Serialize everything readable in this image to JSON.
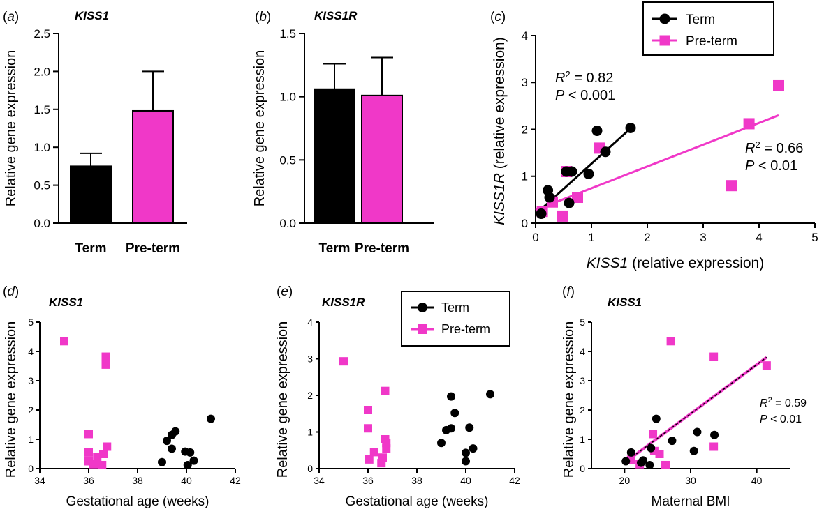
{
  "figure": {
    "colors": {
      "term": "#000000",
      "preterm": "#f038c8",
      "axis": "#000000"
    },
    "legend": {
      "term_label": "Term",
      "preterm_label": "Pre-term"
    }
  },
  "chart_data": [
    {
      "id": "a",
      "type": "bar",
      "panel_label": "a",
      "title": "KISS1",
      "ylabel": "Relative gene expression",
      "xlabel": "",
      "ylim": [
        0,
        2.5
      ],
      "yticks": [
        0,
        0.5,
        1.0,
        1.5,
        2.0,
        2.5
      ],
      "ytick_labels": [
        "0.0",
        "0.5",
        "1.0",
        "1.5",
        "2.0",
        "2.5"
      ],
      "categories": [
        "Term",
        "Pre-term"
      ],
      "values": [
        0.75,
        1.48
      ],
      "errors": [
        0.17,
        0.52
      ]
    },
    {
      "id": "b",
      "type": "bar",
      "panel_label": "b",
      "title": "KISS1R",
      "ylabel": "Relative gene expression",
      "xlabel": "",
      "ylim": [
        0,
        1.5
      ],
      "yticks": [
        0,
        0.5,
        1.0,
        1.5
      ],
      "ytick_labels": [
        "0.0",
        "0.5",
        "1.0",
        "1.5"
      ],
      "categories": [
        "Term",
        "Pre-term"
      ],
      "values": [
        1.06,
        1.01
      ],
      "errors": [
        0.2,
        0.3
      ]
    },
    {
      "id": "c",
      "type": "scatter",
      "panel_label": "c",
      "title": "",
      "xlabel_italic": "KISS1",
      "xlabel_rest": " (relative expression)",
      "ylabel_italic": "KISS1R",
      "ylabel_rest": " (relative expression)",
      "xlim": [
        0,
        5
      ],
      "ylim": [
        0,
        4
      ],
      "xticks": [
        0,
        1,
        2,
        3,
        4,
        5
      ],
      "yticks": [
        0,
        1,
        2,
        3,
        4
      ],
      "xtick_labels": [
        "0",
        "1",
        "2",
        "3",
        "4",
        "5"
      ],
      "ytick_labels": [
        "0",
        "1",
        "2",
        "3",
        "4"
      ],
      "legend": [
        "Term",
        "Pre-term"
      ],
      "series": [
        {
          "name": "Term",
          "marker": "circle",
          "points": [
            [
              0.1,
              0.2
            ],
            [
              0.22,
              0.7
            ],
            [
              0.25,
              0.55
            ],
            [
              0.55,
              1.1
            ],
            [
              0.65,
              1.1
            ],
            [
              0.95,
              1.05
            ],
            [
              1.1,
              1.97
            ],
            [
              0.6,
              0.43
            ],
            [
              1.25,
              1.52
            ],
            [
              1.7,
              2.03
            ]
          ],
          "fit": [
            [
              0.1,
              0.3
            ],
            [
              1.7,
              2.02
            ]
          ],
          "stats": {
            "r2": "R",
            "r2_value": " = 0.82",
            "p": "P",
            "p_value": " < 0.001"
          }
        },
        {
          "name": "Pre-term",
          "marker": "square",
          "points": [
            [
              0.12,
              0.25
            ],
            [
              0.3,
              0.45
            ],
            [
              0.48,
              0.15
            ],
            [
              0.55,
              1.1
            ],
            [
              0.75,
              0.55
            ],
            [
              1.15,
              1.6
            ],
            [
              3.5,
              0.8
            ],
            [
              3.82,
              2.12
            ],
            [
              4.35,
              2.93
            ]
          ],
          "fit": [
            [
              0,
              0.28
            ],
            [
              4.35,
              2.3
            ]
          ],
          "stats": {
            "r2": "R",
            "r2_value": " = 0.66",
            "p": "P",
            "p_value": " < 0.01"
          }
        }
      ]
    },
    {
      "id": "d",
      "type": "scatter",
      "panel_label": "d",
      "title": "KISS1",
      "xlabel": "Gestational age (weeks)",
      "ylabel": "Relative gene expression",
      "xlim": [
        34,
        42
      ],
      "ylim": [
        0,
        5
      ],
      "xticks": [
        34,
        36,
        38,
        40,
        42
      ],
      "yticks": [
        0,
        1,
        2,
        3,
        4,
        5
      ],
      "xtick_labels": [
        "34",
        "36",
        "38",
        "40",
        "42"
      ],
      "ytick_labels": [
        "0",
        "1",
        "2",
        "3",
        "4",
        "5"
      ],
      "series": [
        {
          "name": "Term",
          "marker": "circle",
          "points": [
            [
              39.0,
              0.22
            ],
            [
              39.2,
              0.95
            ],
            [
              39.4,
              0.68
            ],
            [
              39.4,
              1.15
            ],
            [
              39.55,
              1.27
            ],
            [
              39.95,
              0.58
            ],
            [
              40.05,
              0.12
            ],
            [
              40.15,
              0.55
            ],
            [
              40.3,
              0.27
            ],
            [
              41.0,
              1.7
            ]
          ]
        },
        {
          "name": "Pre-term",
          "marker": "square",
          "points": [
            [
              35.0,
              4.35
            ],
            [
              36.0,
              1.18
            ],
            [
              36.0,
              0.55
            ],
            [
              36.0,
              0.25
            ],
            [
              36.2,
              0.15
            ],
            [
              36.35,
              0.4
            ],
            [
              36.55,
              0.12
            ],
            [
              36.6,
              0.5
            ],
            [
              36.7,
              3.82
            ],
            [
              36.7,
              3.55
            ],
            [
              36.75,
              0.75
            ]
          ]
        }
      ]
    },
    {
      "id": "e",
      "type": "scatter",
      "panel_label": "e",
      "title": "KISS1R",
      "xlabel": "Gestational age (weeks)",
      "ylabel": "Relative gene expression",
      "xlim": [
        34,
        42
      ],
      "ylim": [
        0,
        4
      ],
      "xticks": [
        34,
        36,
        38,
        40,
        42
      ],
      "yticks": [
        0,
        1,
        2,
        3,
        4
      ],
      "xtick_labels": [
        "34",
        "36",
        "38",
        "40",
        "42"
      ],
      "ytick_labels": [
        "0",
        "1",
        "2",
        "3",
        "4"
      ],
      "legend": [
        "Term",
        "Pre-term"
      ],
      "series": [
        {
          "name": "Term",
          "marker": "circle",
          "points": [
            [
              39.0,
              0.7
            ],
            [
              39.2,
              1.05
            ],
            [
              39.4,
              1.1
            ],
            [
              39.4,
              1.97
            ],
            [
              39.55,
              1.52
            ],
            [
              40.0,
              0.43
            ],
            [
              40.0,
              0.2
            ],
            [
              40.15,
              1.12
            ],
            [
              40.3,
              0.55
            ],
            [
              41.0,
              2.03
            ]
          ]
        },
        {
          "name": "Pre-term",
          "marker": "square",
          "points": [
            [
              35.0,
              2.93
            ],
            [
              36.0,
              1.6
            ],
            [
              36.0,
              1.1
            ],
            [
              36.05,
              0.25
            ],
            [
              36.25,
              0.45
            ],
            [
              36.55,
              0.15
            ],
            [
              36.6,
              0.3
            ],
            [
              36.7,
              2.12
            ],
            [
              36.7,
              0.8
            ],
            [
              36.75,
              0.7
            ],
            [
              36.75,
              0.55
            ]
          ]
        }
      ]
    },
    {
      "id": "f",
      "type": "scatter",
      "panel_label": "f",
      "title": "KISS1",
      "xlabel": "Maternal BMI",
      "ylabel": "Relative gene expression",
      "xlim": [
        15,
        45
      ],
      "ylim": [
        0,
        5
      ],
      "xticks": [
        20,
        30,
        40
      ],
      "yticks": [
        0,
        1,
        2,
        3,
        4,
        5
      ],
      "xtick_labels": [
        "20",
        "30",
        "40"
      ],
      "ytick_labels": [
        "0",
        "1",
        "2",
        "3",
        "4",
        "5"
      ],
      "series": [
        {
          "name": "Term",
          "marker": "circle",
          "points": [
            [
              20.2,
              0.25
            ],
            [
              21.0,
              0.55
            ],
            [
              22.5,
              0.2
            ],
            [
              22.8,
              0.28
            ],
            [
              23.8,
              0.12
            ],
            [
              24.0,
              0.7
            ],
            [
              24.8,
              1.7
            ],
            [
              27.2,
              0.95
            ],
            [
              30.5,
              0.6
            ],
            [
              31.0,
              1.25
            ],
            [
              33.6,
              1.15
            ]
          ]
        },
        {
          "name": "Pre-term",
          "marker": "square",
          "points": [
            [
              21.0,
              0.3
            ],
            [
              22.3,
              0.15
            ],
            [
              24.3,
              1.18
            ],
            [
              24.5,
              0.6
            ],
            [
              25.3,
              0.5
            ],
            [
              26.2,
              0.12
            ],
            [
              27.0,
              4.35
            ],
            [
              33.5,
              3.82
            ],
            [
              33.5,
              0.75
            ],
            [
              41.5,
              3.52
            ]
          ]
        }
      ],
      "fit": [
        [
          20,
          0.2
        ],
        [
          41.5,
          3.8
        ]
      ],
      "stats": {
        "r2": "R",
        "r2_value": " = 0.59",
        "p": "P",
        "p_value": " < 0.01"
      }
    }
  ]
}
